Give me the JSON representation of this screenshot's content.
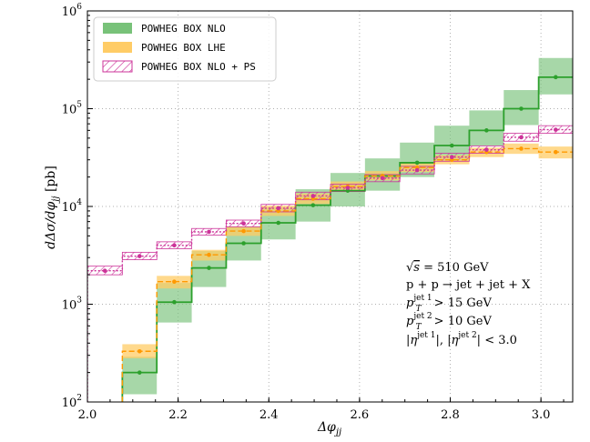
{
  "chart_data": {
    "type": "step-histogram",
    "xlabel": "Δφ_jj",
    "ylabel": "dΔσ/dφ_jj [pb]",
    "xlim": [
      2.0,
      3.07
    ],
    "ylim": [
      100,
      1000000
    ],
    "yscale": "log",
    "grid": true,
    "x_ticks": [
      "2.0",
      "2.2",
      "2.4",
      "2.6",
      "2.8",
      "3.0"
    ],
    "y_ticks": [
      {
        "base": "10",
        "exp": "2"
      },
      {
        "base": "10",
        "exp": "3"
      },
      {
        "base": "10",
        "exp": "4"
      },
      {
        "base": "10",
        "exp": "5"
      },
      {
        "base": "10",
        "exp": "6"
      }
    ],
    "bin_edges": [
      2.0,
      2.077,
      2.153,
      2.23,
      2.306,
      2.383,
      2.459,
      2.536,
      2.612,
      2.689,
      2.765,
      2.842,
      2.918,
      2.995,
      3.07
    ],
    "series": [
      {
        "name": "POWHEG BOX NLO",
        "color": "#2ca02c",
        "band_color": "#78c279",
        "values": [
          null,
          200,
          1050,
          2350,
          4200,
          6800,
          10300,
          14500,
          20500,
          28000,
          42000,
          60000,
          100000,
          210000
        ],
        "band_low": [
          null,
          120,
          650,
          1500,
          2800,
          4600,
          7000,
          10000,
          14500,
          20000,
          29000,
          42000,
          68000,
          140000
        ],
        "band_high": [
          null,
          290,
          1650,
          3500,
          6200,
          9800,
          15000,
          22000,
          31000,
          45000,
          67000,
          96000,
          155000,
          330000
        ]
      },
      {
        "name": "POWHEG BOX LHE",
        "color": "#ff9900",
        "band_color": "#ffcc66",
        "values": [
          null,
          330,
          1700,
          3200,
          5600,
          9000,
          12000,
          16000,
          20500,
          25000,
          30000,
          36000,
          39000,
          36000
        ],
        "band_low": [
          null,
          280,
          1450,
          2800,
          5000,
          8000,
          10600,
          14200,
          18500,
          22500,
          27000,
          32000,
          34500,
          31000
        ],
        "band_high": [
          null,
          390,
          1950,
          3600,
          6200,
          10200,
          13600,
          18000,
          23000,
          28000,
          33500,
          40000,
          44000,
          41000
        ]
      },
      {
        "name": "POWHEG BOX NLO + PS",
        "color": "#cc3399",
        "band_color": "#cc3399",
        "values": [
          2200,
          3100,
          4000,
          5500,
          6700,
          9600,
          12800,
          15500,
          19500,
          23500,
          32000,
          38000,
          51000,
          61000
        ],
        "band_low": [
          2000,
          2850,
          3700,
          5100,
          6200,
          8800,
          11700,
          14200,
          17900,
          21500,
          29000,
          35000,
          46500,
          56000
        ],
        "band_high": [
          2450,
          3400,
          4350,
          5950,
          7250,
          10500,
          14000,
          16900,
          21200,
          25700,
          35000,
          41500,
          56000,
          67000
        ]
      }
    ],
    "legend_position": "top-left",
    "annotations": [
      "√s = 510 GeV",
      "p + p → jet + jet + X",
      "p_T^jet1 > 15 GeV",
      "p_T^jet2 > 10 GeV",
      "|η^jet1|, |η^jet2| < 3.0"
    ]
  },
  "legend": {
    "nlo": "POWHEG BOX NLO",
    "lhe": "POWHEG BOX LHE",
    "ps": "POWHEG BOX NLO + PS"
  },
  "annotations": {
    "sqrt_s_value": "= 510 GeV",
    "process": "p + p → jet + jet + X",
    "jet1_cut": "> 15 GeV",
    "jet2_cut": "> 10 GeV",
    "eta_cut": "< 3.0"
  },
  "colors": {
    "nlo_line": "#2ca02c",
    "nlo_band": "#78c279",
    "lhe_line": "#ff9900",
    "lhe_band": "#ffcc66",
    "ps_line": "#cc3399"
  }
}
